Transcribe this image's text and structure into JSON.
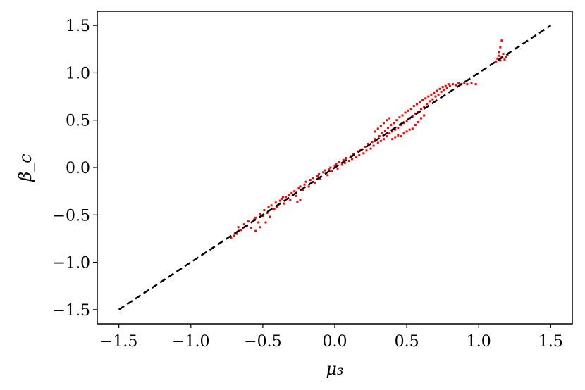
{
  "chart_data": {
    "type": "scatter",
    "xlabel": "μ₃",
    "ylabel": "β_c",
    "xlim": [
      -1.65,
      1.65
    ],
    "ylim": [
      -1.65,
      1.65
    ],
    "xticks": [
      {
        "value": -1.5,
        "label": "−1.5"
      },
      {
        "value": -1.0,
        "label": "−1.0"
      },
      {
        "value": -0.5,
        "label": "−0.5"
      },
      {
        "value": 0.0,
        "label": "0.0"
      },
      {
        "value": 0.5,
        "label": "0.5"
      },
      {
        "value": 1.0,
        "label": "1.0"
      },
      {
        "value": 1.5,
        "label": "1.5"
      }
    ],
    "yticks": [
      {
        "value": -1.5,
        "label": "−1.5"
      },
      {
        "value": -1.0,
        "label": "−1.0"
      },
      {
        "value": -0.5,
        "label": "−0.5"
      },
      {
        "value": 0.0,
        "label": "0.0"
      },
      {
        "value": 0.5,
        "label": "0.5"
      },
      {
        "value": 1.0,
        "label": "1.0"
      },
      {
        "value": 1.5,
        "label": "1.5"
      }
    ],
    "grid": false,
    "series": [
      {
        "type": "scatter",
        "color": "#ff0000",
        "points": [
          [
            -0.72,
            -0.74
          ],
          [
            -0.7,
            -0.72
          ],
          [
            -0.68,
            -0.7
          ],
          [
            -0.67,
            -0.63
          ],
          [
            -0.65,
            -0.66
          ],
          [
            -0.63,
            -0.6
          ],
          [
            -0.61,
            -0.62
          ],
          [
            -0.6,
            -0.57
          ],
          [
            -0.58,
            -0.64
          ],
          [
            -0.56,
            -0.55
          ],
          [
            -0.55,
            -0.53
          ],
          [
            -0.53,
            -0.58
          ],
          [
            -0.52,
            -0.49
          ],
          [
            -0.5,
            -0.51
          ],
          [
            -0.49,
            -0.45
          ],
          [
            -0.47,
            -0.48
          ],
          [
            -0.46,
            -0.42
          ],
          [
            -0.45,
            -0.52
          ],
          [
            -0.44,
            -0.4
          ],
          [
            -0.42,
            -0.44
          ],
          [
            -0.41,
            -0.37
          ],
          [
            -0.4,
            -0.42
          ],
          [
            -0.38,
            -0.35
          ],
          [
            -0.37,
            -0.33
          ],
          [
            -0.35,
            -0.38
          ],
          [
            -0.34,
            -0.31
          ],
          [
            -0.32,
            -0.29
          ],
          [
            -0.31,
            -0.34
          ],
          [
            -0.3,
            -0.27
          ],
          [
            -0.28,
            -0.25
          ],
          [
            -0.27,
            -0.3
          ],
          [
            -0.25,
            -0.22
          ],
          [
            -0.24,
            -0.2
          ],
          [
            -0.22,
            -0.24
          ],
          [
            -0.21,
            -0.18
          ],
          [
            -0.2,
            -0.15
          ],
          [
            -0.18,
            -0.2
          ],
          [
            -0.17,
            -0.13
          ],
          [
            -0.15,
            -0.11
          ],
          [
            -0.14,
            -0.16
          ],
          [
            -0.12,
            -0.09
          ],
          [
            -0.11,
            -0.07
          ],
          [
            -0.1,
            -0.12
          ],
          [
            -0.08,
            -0.05
          ],
          [
            -0.07,
            -0.03
          ],
          [
            -0.05,
            -0.08
          ],
          [
            -0.04,
            -0.02
          ],
          [
            -0.03,
            0.0
          ],
          [
            -0.02,
            -0.04
          ],
          [
            0.0,
            0.02
          ],
          [
            0.01,
            0.04
          ],
          [
            0.02,
            -0.01
          ],
          [
            0.03,
            0.06
          ],
          [
            0.05,
            0.03
          ],
          [
            0.06,
            0.08
          ],
          [
            0.07,
            0.05
          ],
          [
            0.08,
            0.1
          ],
          [
            0.1,
            0.07
          ],
          [
            0.11,
            0.12
          ],
          [
            0.12,
            0.09
          ],
          [
            0.13,
            0.14
          ],
          [
            0.15,
            0.11
          ],
          [
            0.16,
            0.17
          ],
          [
            0.17,
            0.13
          ],
          [
            0.18,
            0.19
          ],
          [
            0.2,
            0.15
          ],
          [
            0.21,
            0.22
          ],
          [
            0.22,
            0.18
          ],
          [
            0.23,
            0.25
          ],
          [
            0.25,
            0.2
          ],
          [
            0.26,
            0.27
          ],
          [
            0.27,
            0.23
          ],
          [
            0.28,
            0.3
          ],
          [
            0.3,
            0.26
          ],
          [
            0.31,
            0.33
          ],
          [
            0.32,
            0.28
          ],
          [
            0.33,
            0.36
          ],
          [
            0.34,
            0.3
          ],
          [
            0.35,
            0.39
          ],
          [
            0.36,
            0.33
          ],
          [
            0.37,
            0.42
          ],
          [
            0.38,
            0.36
          ],
          [
            0.39,
            0.45
          ],
          [
            0.4,
            0.38
          ],
          [
            0.41,
            0.47
          ],
          [
            0.42,
            0.4
          ],
          [
            0.43,
            0.5
          ],
          [
            0.44,
            0.42
          ],
          [
            0.45,
            0.53
          ],
          [
            0.46,
            0.45
          ],
          [
            0.47,
            0.55
          ],
          [
            0.48,
            0.47
          ],
          [
            0.49,
            0.58
          ],
          [
            0.5,
            0.49
          ],
          [
            0.51,
            0.6
          ],
          [
            0.52,
            0.52
          ],
          [
            0.53,
            0.62
          ],
          [
            0.54,
            0.54
          ],
          [
            0.55,
            0.65
          ],
          [
            0.56,
            0.57
          ],
          [
            0.57,
            0.67
          ],
          [
            0.58,
            0.59
          ],
          [
            0.59,
            0.69
          ],
          [
            0.6,
            0.62
          ],
          [
            0.61,
            0.71
          ],
          [
            0.62,
            0.64
          ],
          [
            0.63,
            0.73
          ],
          [
            0.64,
            0.67
          ],
          [
            0.65,
            0.75
          ],
          [
            0.66,
            0.7
          ],
          [
            0.67,
            0.77
          ],
          [
            0.68,
            0.72
          ],
          [
            0.69,
            0.79
          ],
          [
            0.7,
            0.75
          ],
          [
            0.71,
            0.81
          ],
          [
            0.72,
            0.77
          ],
          [
            0.73,
            0.83
          ],
          [
            0.74,
            0.8
          ],
          [
            0.75,
            0.85
          ],
          [
            0.76,
            0.82
          ],
          [
            0.77,
            0.86
          ],
          [
            0.78,
            0.84
          ],
          [
            0.79,
            0.88
          ],
          [
            0.8,
            0.86
          ],
          [
            0.82,
            0.88
          ],
          [
            0.84,
            0.87
          ],
          [
            0.86,
            0.89
          ],
          [
            0.88,
            0.88
          ],
          [
            0.9,
            0.89
          ],
          [
            0.92,
            0.88
          ],
          [
            0.95,
            0.89
          ],
          [
            0.98,
            0.88
          ],
          [
            1.12,
            1.12
          ],
          [
            1.13,
            1.15
          ],
          [
            1.14,
            1.18
          ],
          [
            1.15,
            1.13
          ],
          [
            1.16,
            1.17
          ],
          [
            1.17,
            1.2
          ],
          [
            1.18,
            1.14
          ],
          [
            1.19,
            1.17
          ],
          [
            1.2,
            1.19
          ],
          [
            1.15,
            1.27
          ],
          [
            1.16,
            1.34
          ],
          [
            1.14,
            1.22
          ],
          [
            0.4,
            0.3
          ],
          [
            0.42,
            0.32
          ],
          [
            0.44,
            0.34
          ],
          [
            0.46,
            0.33
          ],
          [
            0.48,
            0.36
          ],
          [
            0.5,
            0.38
          ],
          [
            0.52,
            0.4
          ],
          [
            0.54,
            0.41
          ],
          [
            0.56,
            0.45
          ],
          [
            0.58,
            0.48
          ],
          [
            0.6,
            0.52
          ],
          [
            0.62,
            0.55
          ],
          [
            0.28,
            0.38
          ],
          [
            0.3,
            0.41
          ],
          [
            0.32,
            0.44
          ],
          [
            0.34,
            0.47
          ],
          [
            0.36,
            0.5
          ],
          [
            0.38,
            0.52
          ],
          [
            -0.55,
            -0.67
          ],
          [
            -0.52,
            -0.63
          ],
          [
            -0.48,
            -0.58
          ],
          [
            -0.36,
            -0.31
          ],
          [
            -0.26,
            -0.36
          ],
          [
            -0.24,
            -0.34
          ]
        ]
      },
      {
        "type": "line",
        "style": "dashed",
        "color": "#000000",
        "x": [
          -1.5,
          1.5
        ],
        "y": [
          -1.5,
          1.5
        ]
      }
    ]
  }
}
